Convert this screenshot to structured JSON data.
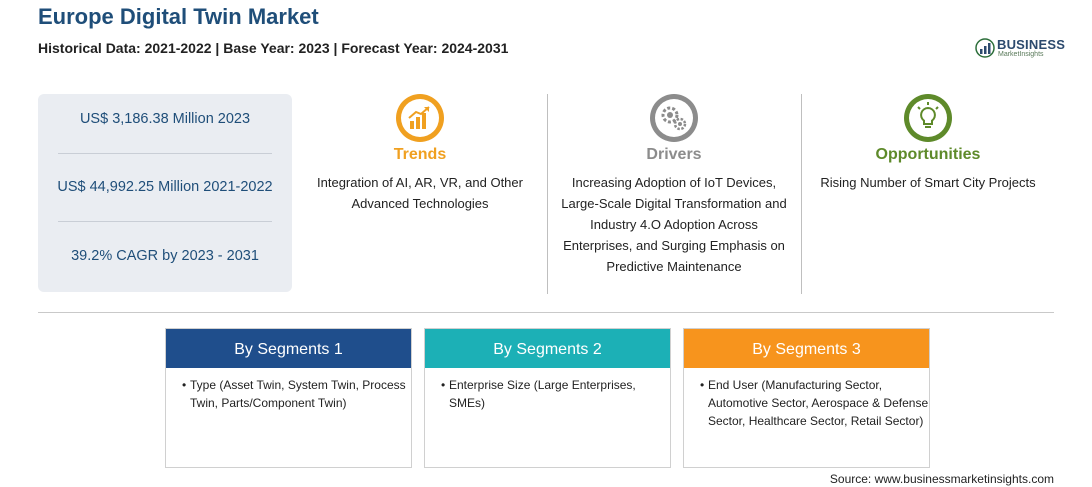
{
  "header": {
    "title": "Europe Digital Twin Market",
    "subtitle": "Historical Data: 2021-2022 | Base Year: 2023 | Forecast Year: 2024-2031"
  },
  "logo": {
    "brand": "BUSINESS",
    "sub": "MarketInsights"
  },
  "stats": [
    "US$ 3,186.38 Million 2023",
    "US$ 44,992.25 Million 2021-2022",
    "39.2% CAGR by 2023 - 2031"
  ],
  "columns": [
    {
      "icon": "chart-up-icon",
      "heading": "Trends",
      "color": "#f0a020",
      "text": "Integration of AI, AR, VR, and Other Advanced Technologies"
    },
    {
      "icon": "gears-icon",
      "heading": "Drivers",
      "color": "#8c8c8c",
      "text": "Increasing Adoption of IoT Devices, Large-Scale Digital Transformation and Industry 4.O Adoption Across Enterprises, and Surging Emphasis on Predictive Maintenance"
    },
    {
      "icon": "lightbulb-icon",
      "heading": "Opportunities",
      "color": "#5e8a2a",
      "text": "Rising Number of Smart City Projects"
    }
  ],
  "segments": [
    {
      "title": "By Segments 1",
      "color": "#1f4e8c",
      "items": [
        "Type (Asset Twin, System Twin, Process Twin, Parts/Component Twin)"
      ]
    },
    {
      "title": "By Segments 2",
      "color": "#1cb0b6",
      "items": [
        "Enterprise Size (Large Enterprises, SMEs)"
      ]
    },
    {
      "title": "By Segments 3",
      "color": "#f7941d",
      "items": [
        "End User (Manufacturing Sector, Automotive Sector, Aerospace & Defense Sector, Healthcare Sector, Retail Sector)"
      ]
    }
  ],
  "source": "Source: www.businessmarketinsights.com"
}
